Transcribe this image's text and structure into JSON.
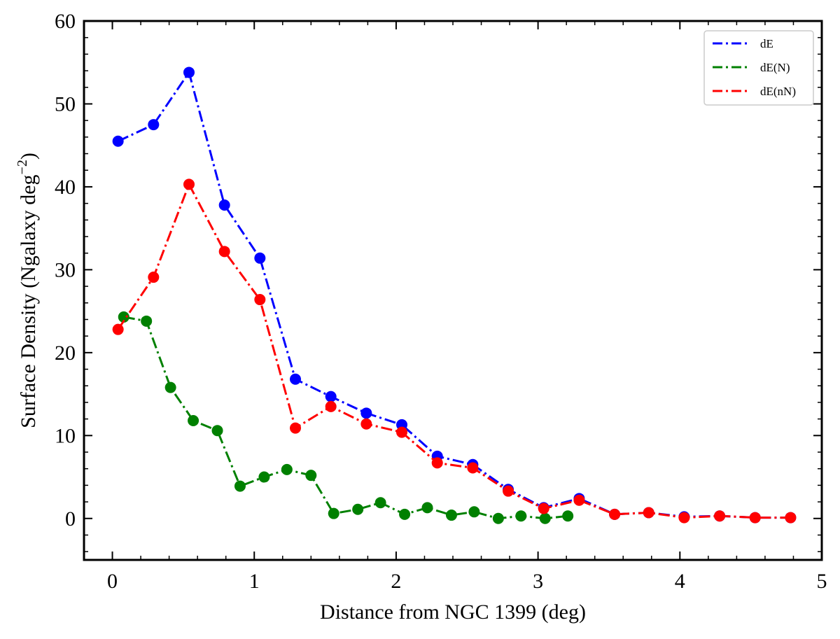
{
  "chart_data": {
    "type": "line",
    "title": "",
    "xlabel": "Distance from NGC 1399 (deg)",
    "ylabel": "Surface Density (Ngalaxy deg",
    "ylabel_exponent": "−2",
    "ylabel_suffix": ")",
    "xlim": [
      -0.2,
      5.0
    ],
    "ylim": [
      -5,
      60
    ],
    "x_ticks": [
      0,
      1,
      2,
      3,
      4,
      5
    ],
    "x_tick_labels": [
      "0",
      "1",
      "2",
      "3",
      "4",
      "5"
    ],
    "y_ticks": [
      0,
      10,
      20,
      30,
      40,
      50,
      60
    ],
    "y_tick_labels": [
      "0",
      "10",
      "20",
      "30",
      "40",
      "50",
      "60"
    ],
    "grid": false,
    "legend_position": "top-right",
    "series": [
      {
        "name": "dE",
        "color": "#0000ff",
        "x": [
          0.04,
          0.29,
          0.54,
          0.79,
          1.04,
          1.29,
          1.54,
          1.79,
          2.04,
          2.29,
          2.54,
          2.79,
          3.04,
          3.29,
          3.54,
          3.78,
          4.03,
          4.28,
          4.53,
          4.78
        ],
        "y": [
          45.5,
          47.5,
          53.8,
          37.8,
          31.4,
          16.8,
          14.7,
          12.7,
          11.3,
          7.5,
          6.5,
          3.5,
          1.3,
          2.4,
          0.5,
          0.7,
          0.2,
          0.3,
          0.1,
          0.1
        ]
      },
      {
        "name": "dE(N)",
        "color": "#008000",
        "x": [
          0.08,
          0.24,
          0.41,
          0.57,
          0.74,
          0.9,
          1.07,
          1.23,
          1.4,
          1.56,
          1.73,
          1.89,
          2.06,
          2.22,
          2.39,
          2.55,
          2.72,
          2.88,
          3.05,
          3.21
        ],
        "y": [
          24.3,
          23.8,
          15.8,
          11.8,
          10.6,
          3.9,
          5.0,
          5.9,
          5.2,
          0.6,
          1.1,
          1.9,
          0.5,
          1.3,
          0.4,
          0.8,
          0.0,
          0.3,
          0.0,
          0.3
        ]
      },
      {
        "name": "dE(nN)",
        "color": "#ff0000",
        "x": [
          0.04,
          0.29,
          0.54,
          0.79,
          1.04,
          1.29,
          1.54,
          1.79,
          2.04,
          2.29,
          2.54,
          2.79,
          3.04,
          3.29,
          3.54,
          3.78,
          4.03,
          4.28,
          4.53,
          4.78
        ],
        "y": [
          22.8,
          29.1,
          40.3,
          32.2,
          26.4,
          10.9,
          13.5,
          11.4,
          10.4,
          6.7,
          6.1,
          3.3,
          1.2,
          2.2,
          0.5,
          0.7,
          0.1,
          0.3,
          0.1,
          0.1
        ]
      }
    ]
  }
}
